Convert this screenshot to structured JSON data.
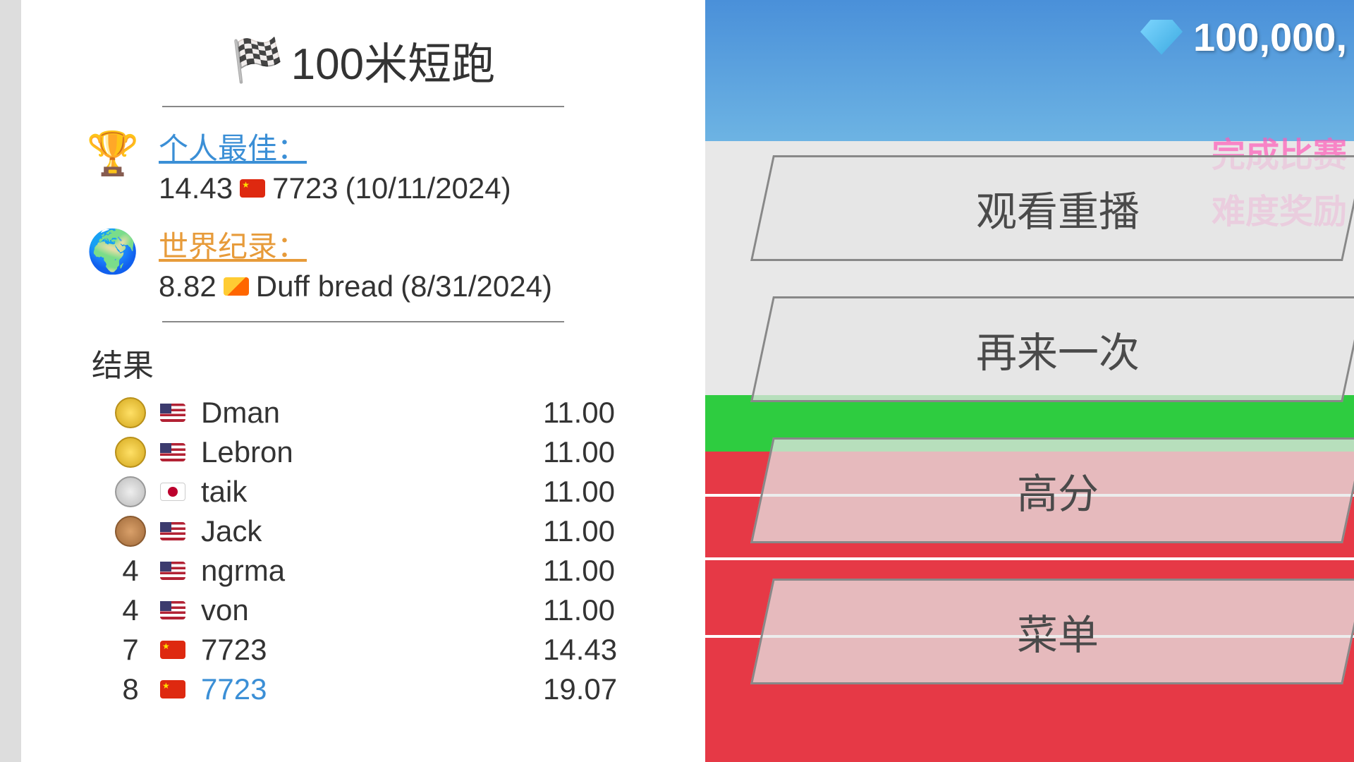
{
  "event": {
    "title": "100米短跑"
  },
  "personalBest": {
    "label": "个人最佳：",
    "time": "14.43",
    "player": "7723",
    "date": "(10/11/2024)"
  },
  "worldRecord": {
    "label": "世界纪录：",
    "time": "8.82",
    "player": "Duff bread",
    "date": "(8/31/2024)"
  },
  "resultsHeader": "结果",
  "results": [
    {
      "rank": "gold",
      "rankText": "",
      "flag": "us",
      "name": "Dman",
      "time": "11.00",
      "highlighted": false
    },
    {
      "rank": "gold",
      "rankText": "",
      "flag": "us",
      "name": "Lebron",
      "time": "11.00",
      "highlighted": false
    },
    {
      "rank": "silver",
      "rankText": "",
      "flag": "jp",
      "name": "taik",
      "time": "11.00",
      "highlighted": false
    },
    {
      "rank": "bronze",
      "rankText": "",
      "flag": "us",
      "name": "Jack",
      "time": "11.00",
      "highlighted": false
    },
    {
      "rank": "",
      "rankText": "4",
      "flag": "us",
      "name": "ngrma",
      "time": "11.00",
      "highlighted": false
    },
    {
      "rank": "",
      "rankText": "4",
      "flag": "us",
      "name": "von",
      "time": "11.00",
      "highlighted": false
    },
    {
      "rank": "",
      "rankText": "7",
      "flag": "cn",
      "name": "7723",
      "time": "14.43",
      "highlighted": false
    },
    {
      "rank": "",
      "rankText": "8",
      "flag": "cn",
      "name": "7723",
      "time": "19.07",
      "highlighted": true
    }
  ],
  "currency": {
    "amount": "100,000,"
  },
  "overlays": {
    "complete": "完成比赛",
    "difficulty": "难度奖励"
  },
  "menu": {
    "replay": "观看重播",
    "again": "再来一次",
    "highscore": "高分",
    "menu": "菜单"
  },
  "colors": {
    "sky": "#87ceeb",
    "track": "#e63946",
    "grass": "#2ecc40",
    "pbLabel": "#3b8fd6",
    "wrLabel": "#e79b3a"
  }
}
